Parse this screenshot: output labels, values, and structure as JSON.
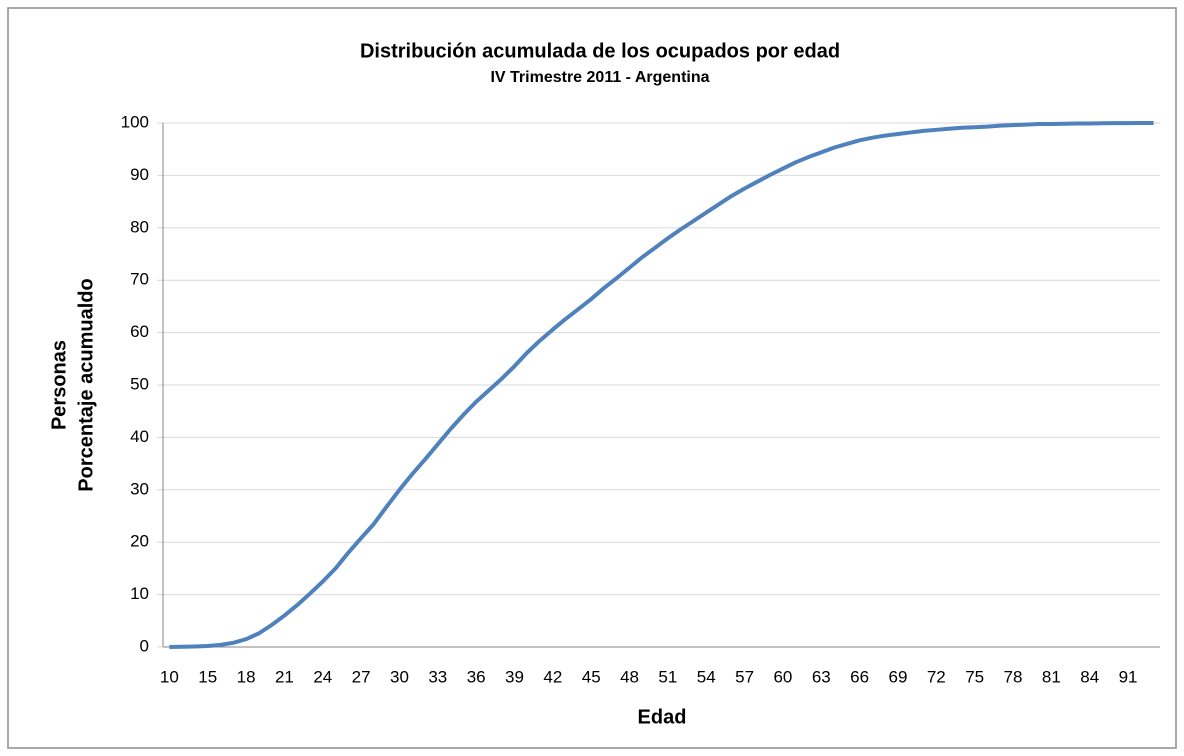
{
  "chart_data": {
    "type": "line",
    "title": "Distribución acumulada de los ocupados por edad",
    "subtitle": "IV Trimestre 2011 - Argentina",
    "ylabel": [
      "Personas",
      "Porcentaje acumualdo"
    ],
    "xlabel": "Edad",
    "categories": [
      "10",
      null,
      null,
      "15",
      null,
      null,
      "18",
      null,
      null,
      "21",
      null,
      null,
      "24",
      null,
      null,
      "27",
      null,
      null,
      "30",
      null,
      null,
      "33",
      null,
      null,
      "36",
      null,
      null,
      "39",
      null,
      null,
      "42",
      null,
      null,
      "45",
      null,
      null,
      "48",
      null,
      null,
      "51",
      null,
      null,
      "54",
      null,
      null,
      "57",
      null,
      null,
      "60",
      null,
      null,
      "63",
      null,
      null,
      "66",
      null,
      null,
      "69",
      null,
      null,
      "72",
      null,
      null,
      "75",
      null,
      null,
      "78",
      null,
      null,
      "81",
      null,
      null,
      "84",
      null,
      null,
      "91",
      null,
      null
    ],
    "series": [
      {
        "color": "#4f81bd",
        "values": [
          0,
          0.05,
          0.1,
          0.2,
          0.4,
          0.8,
          1.5,
          2.6,
          4.2,
          6.0,
          8.0,
          10.2,
          12.5,
          15.0,
          18.0,
          20.8,
          23.5,
          26.8,
          30.0,
          33.0,
          35.8,
          38.7,
          41.6,
          44.3,
          46.8,
          49.0,
          51.2,
          53.6,
          56.2,
          58.5,
          60.6,
          62.6,
          64.5,
          66.4,
          68.5,
          70.4,
          72.4,
          74.4,
          76.2,
          78.0,
          79.7,
          81.3,
          82.9,
          84.5,
          86.1,
          87.5,
          88.8,
          90.1,
          91.3,
          92.5,
          93.5,
          94.4,
          95.3,
          96.0,
          96.7,
          97.2,
          97.6,
          97.9,
          98.2,
          98.5,
          98.7,
          98.9,
          99.1,
          99.2,
          99.3,
          99.5,
          99.6,
          99.7,
          99.8,
          99.8,
          99.85,
          99.9,
          99.9,
          99.95,
          99.97,
          99.98,
          99.99,
          100
        ]
      }
    ],
    "ylim": [
      0,
      100
    ],
    "yticks": [
      0,
      10,
      20,
      30,
      40,
      50,
      60,
      70,
      80,
      90,
      100
    ],
    "grid": true
  }
}
